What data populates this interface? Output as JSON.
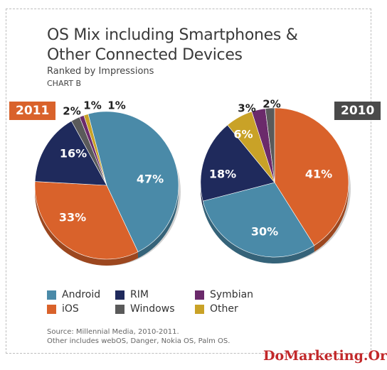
{
  "chart_data": [
    {
      "type": "pie",
      "title": "OS Mix including Smartphones & Other Connected Devices",
      "subtitle": "Ranked by Impressions",
      "chart_label": "CHART B",
      "year": "2011",
      "slices": [
        {
          "name": "Android",
          "value": 47,
          "label": "47%"
        },
        {
          "name": "iOS",
          "value": 33,
          "label": "33%"
        },
        {
          "name": "RIM",
          "value": 16,
          "label": "16%"
        },
        {
          "name": "Windows",
          "value": 2,
          "label": "2%"
        },
        {
          "name": "Symbian",
          "value": 1,
          "label": "1%"
        },
        {
          "name": "Other",
          "value": 1,
          "label": "1%"
        }
      ]
    },
    {
      "type": "pie",
      "year": "2010",
      "slices": [
        {
          "name": "iOS",
          "value": 41,
          "label": "41%"
        },
        {
          "name": "Android",
          "value": 30,
          "label": "30%"
        },
        {
          "name": "RIM",
          "value": 18,
          "label": "18%"
        },
        {
          "name": "Other",
          "value": 6,
          "label": "6%"
        },
        {
          "name": "Symbian",
          "value": 3,
          "label": "3%"
        },
        {
          "name": "Windows",
          "value": 2,
          "label": "2%"
        }
      ]
    }
  ],
  "legend": [
    {
      "name": "Android",
      "color": "#4a8aa8"
    },
    {
      "name": "RIM",
      "color": "#1f2a5c"
    },
    {
      "name": "Symbian",
      "color": "#6b2a6b"
    },
    {
      "name": "iOS",
      "color": "#d9622b"
    },
    {
      "name": "Windows",
      "color": "#5a5a5a"
    },
    {
      "name": "Other",
      "color": "#c9a227"
    }
  ],
  "colors": {
    "Android": "#4a8aa8",
    "iOS": "#d9622b",
    "RIM": "#1f2a5c",
    "Windows": "#5a5a5a",
    "Symbian": "#6b2a6b",
    "Other": "#c9a227"
  },
  "source_line1": "Source: Millennial Media, 2010-2011.",
  "source_line2": "Other includes webOS, Danger, Nokia OS, Palm OS.",
  "brand": "DoMarketing.Org"
}
